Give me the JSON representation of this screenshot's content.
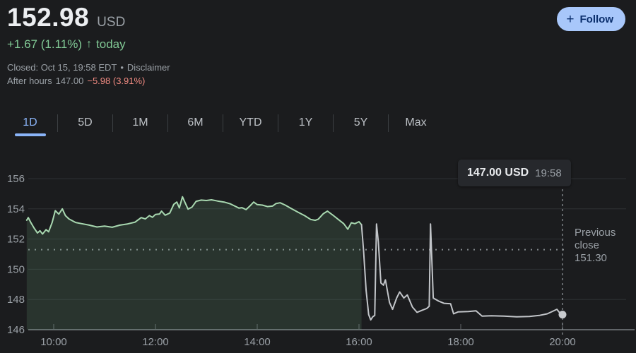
{
  "header": {
    "price": "152.98",
    "currency": "USD",
    "change": "+1.67 (1.11%)",
    "change_arrow": "↑",
    "change_period": "today",
    "closed_label": "Closed: Oct 15, 19:58 EDT",
    "dot_separator": "•",
    "disclaimer": "Disclaimer",
    "after_hours_label": "After hours",
    "after_hours_price": "147.00",
    "after_hours_change": "−5.98 (3.91%)",
    "follow": {
      "icon": "+",
      "label": "Follow"
    }
  },
  "tabs": {
    "items": [
      "1D",
      "5D",
      "1M",
      "6M",
      "YTD",
      "1Y",
      "5Y",
      "Max"
    ],
    "active": "1D"
  },
  "colors": {
    "accent_blue": "#8ab4f8",
    "positive_green": "#81c995",
    "negative_red": "#f28b82",
    "regular_line": "#a8d8b0",
    "after_hours_line": "#c2c5c9",
    "grid": "#2e3134",
    "axis": "#606468",
    "text_gray": "#9aa0a6"
  },
  "chart_data": {
    "type": "line",
    "x_axis": {
      "unit": "hours",
      "tick_hours": [
        10,
        12,
        14,
        16,
        18,
        20
      ],
      "tick_labels": [
        "10:00",
        "12:00",
        "14:00",
        "16:00",
        "18:00",
        "20:00"
      ],
      "range_hours": [
        9.45,
        21.45
      ]
    },
    "y_axis": {
      "ticks": [
        146,
        148,
        150,
        152,
        154,
        156
      ],
      "range": [
        145.85,
        156.85
      ],
      "grid": true
    },
    "previous_close": {
      "label": "Previous close",
      "value": 151.3,
      "value_label": "151.30"
    },
    "tooltip": {
      "price_label": "147.00 USD",
      "time_label": "19:58"
    },
    "marker_line_hour": 20.0,
    "end_marker": {
      "x": 20.0,
      "y": 147.0
    },
    "series": [
      {
        "name": "regular-session",
        "color": "#a8d8b0",
        "fill_color": "rgba(129,201,149,0.14)",
        "points": [
          [
            9.47,
            153.25
          ],
          [
            9.5,
            153.42
          ],
          [
            9.55,
            153.1
          ],
          [
            9.62,
            152.7
          ],
          [
            9.68,
            152.4
          ],
          [
            9.73,
            152.55
          ],
          [
            9.78,
            152.33
          ],
          [
            9.85,
            152.62
          ],
          [
            9.9,
            152.48
          ],
          [
            9.97,
            153.1
          ],
          [
            10.03,
            153.88
          ],
          [
            10.1,
            153.65
          ],
          [
            10.17,
            154.0
          ],
          [
            10.23,
            153.55
          ],
          [
            10.3,
            153.33
          ],
          [
            10.43,
            153.1
          ],
          [
            10.55,
            153.02
          ],
          [
            10.7,
            152.92
          ],
          [
            10.85,
            152.8
          ],
          [
            11.0,
            152.86
          ],
          [
            11.15,
            152.78
          ],
          [
            11.3,
            152.92
          ],
          [
            11.45,
            153.0
          ],
          [
            11.6,
            153.12
          ],
          [
            11.72,
            153.42
          ],
          [
            11.8,
            153.33
          ],
          [
            11.88,
            153.55
          ],
          [
            11.94,
            153.44
          ],
          [
            12.0,
            153.63
          ],
          [
            12.08,
            153.66
          ],
          [
            12.12,
            153.85
          ],
          [
            12.19,
            153.58
          ],
          [
            12.28,
            153.72
          ],
          [
            12.36,
            154.3
          ],
          [
            12.42,
            154.45
          ],
          [
            12.47,
            154.06
          ],
          [
            12.53,
            154.8
          ],
          [
            12.58,
            154.42
          ],
          [
            12.64,
            153.98
          ],
          [
            12.72,
            154.12
          ],
          [
            12.8,
            154.5
          ],
          [
            12.9,
            154.58
          ],
          [
            13.0,
            154.55
          ],
          [
            13.1,
            154.6
          ],
          [
            13.22,
            154.52
          ],
          [
            13.35,
            154.45
          ],
          [
            13.47,
            154.33
          ],
          [
            13.56,
            154.18
          ],
          [
            13.64,
            154.05
          ],
          [
            13.7,
            154.08
          ],
          [
            13.78,
            153.95
          ],
          [
            13.86,
            154.2
          ],
          [
            13.93,
            154.45
          ],
          [
            14.0,
            154.28
          ],
          [
            14.1,
            154.25
          ],
          [
            14.2,
            154.15
          ],
          [
            14.3,
            154.18
          ],
          [
            14.37,
            154.35
          ],
          [
            14.45,
            154.4
          ],
          [
            14.55,
            154.25
          ],
          [
            14.67,
            154.02
          ],
          [
            14.8,
            153.78
          ],
          [
            14.93,
            153.55
          ],
          [
            15.05,
            153.3
          ],
          [
            15.14,
            153.24
          ],
          [
            15.2,
            153.32
          ],
          [
            15.3,
            153.68
          ],
          [
            15.38,
            153.85
          ],
          [
            15.48,
            153.6
          ],
          [
            15.6,
            153.28
          ],
          [
            15.7,
            153.02
          ],
          [
            15.78,
            152.65
          ],
          [
            15.85,
            153.08
          ],
          [
            15.92,
            153.02
          ],
          [
            16.0,
            153.15
          ],
          [
            16.05,
            152.95
          ]
        ]
      },
      {
        "name": "after-hours-session",
        "color": "#c2c5c9",
        "points": [
          [
            16.05,
            152.95
          ],
          [
            16.09,
            151.2
          ],
          [
            16.14,
            148.6
          ],
          [
            16.19,
            147.0
          ],
          [
            16.23,
            146.65
          ],
          [
            16.27,
            146.85
          ],
          [
            16.31,
            146.95
          ],
          [
            16.345,
            153.0
          ],
          [
            16.38,
            151.8
          ],
          [
            16.43,
            149.1
          ],
          [
            16.48,
            148.95
          ],
          [
            16.52,
            149.3
          ],
          [
            16.6,
            147.8
          ],
          [
            16.66,
            147.35
          ],
          [
            16.74,
            148.1
          ],
          [
            16.8,
            148.5
          ],
          [
            16.88,
            148.1
          ],
          [
            16.95,
            148.3
          ],
          [
            17.05,
            147.5
          ],
          [
            17.14,
            147.15
          ],
          [
            17.25,
            147.3
          ],
          [
            17.33,
            147.4
          ],
          [
            17.38,
            147.55
          ],
          [
            17.405,
            153.0
          ],
          [
            17.46,
            148.1
          ],
          [
            17.56,
            147.9
          ],
          [
            17.67,
            147.75
          ],
          [
            17.8,
            147.72
          ],
          [
            17.86,
            147.05
          ],
          [
            17.95,
            147.18
          ],
          [
            18.15,
            147.2
          ],
          [
            18.3,
            147.25
          ],
          [
            18.42,
            146.9
          ],
          [
            18.6,
            146.92
          ],
          [
            18.85,
            146.9
          ],
          [
            19.1,
            146.85
          ],
          [
            19.35,
            146.88
          ],
          [
            19.55,
            146.95
          ],
          [
            19.7,
            147.05
          ],
          [
            19.89,
            147.35
          ],
          [
            19.96,
            147.05
          ],
          [
            20.0,
            147.0
          ]
        ]
      }
    ]
  }
}
